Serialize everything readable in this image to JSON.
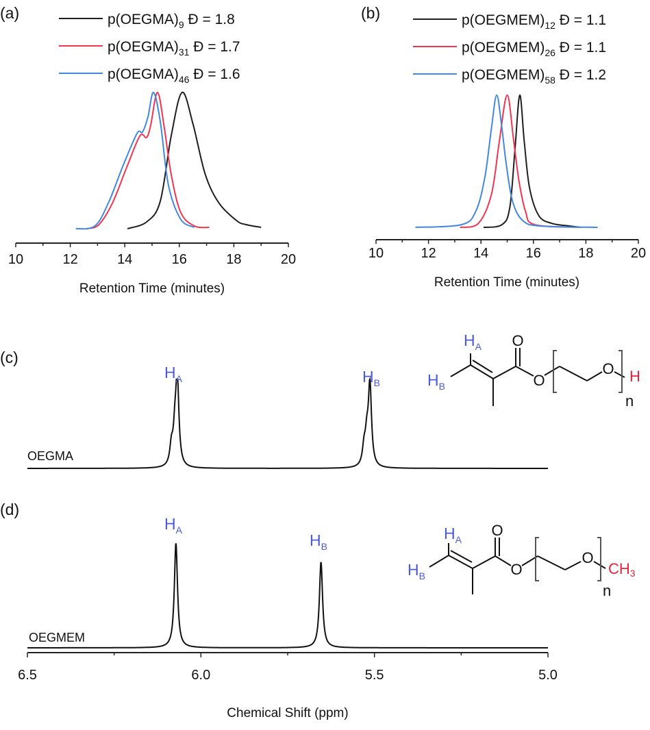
{
  "colors": {
    "black": "#1e1e1e",
    "red": "#f2344f",
    "blue": "#3f87e0",
    "label_blue": "#4a5ad8",
    "label_red": "#e8243c"
  },
  "chart_data": [
    {
      "panel": "(a)",
      "type": "line",
      "xlabel": "Retention Time (minutes)",
      "xlim": [
        10,
        20
      ],
      "xticks": [
        "10",
        "12",
        "14",
        "16",
        "18",
        "20"
      ],
      "yaxis": "none",
      "legend": "top",
      "series": [
        {
          "name_main": "p(OEGMA)",
          "name_sub": "9",
          "name_tail": " Đ = 1.8",
          "color": "black",
          "points": [
            [
              14.1,
              0
            ],
            [
              14.8,
              0.05
            ],
            [
              15.3,
              0.2
            ],
            [
              15.7,
              0.68
            ],
            [
              16.1,
              1
            ],
            [
              16.5,
              0.77
            ],
            [
              16.95,
              0.4
            ],
            [
              17.45,
              0.19
            ],
            [
              18.1,
              0.06
            ],
            [
              18.45,
              0.03
            ],
            [
              19.0,
              0.01
            ]
          ]
        },
        {
          "name_main": "p(OEGMA)",
          "name_sub": "31",
          "name_tail": " Đ = 1.7",
          "color": "red",
          "points": [
            [
              12.6,
              0
            ],
            [
              13.05,
              0.03
            ],
            [
              13.55,
              0.19
            ],
            [
              14.05,
              0.44
            ],
            [
              14.55,
              0.68
            ],
            [
              14.8,
              0.67
            ],
            [
              14.95,
              0.76
            ],
            [
              15.2,
              1
            ],
            [
              15.45,
              0.74
            ],
            [
              15.7,
              0.4
            ],
            [
              16.05,
              0.12
            ],
            [
              16.55,
              0.02
            ],
            [
              17.1,
              0.01
            ]
          ]
        },
        {
          "name_main": "p(OEGMA)",
          "name_sub": "46",
          "name_tail": " Đ = 1.6",
          "color": "blue",
          "points": [
            [
              12.2,
              0
            ],
            [
              12.9,
              0.02
            ],
            [
              13.4,
              0.19
            ],
            [
              13.95,
              0.47
            ],
            [
              14.45,
              0.7
            ],
            [
              14.65,
              0.71
            ],
            [
              14.85,
              0.82
            ],
            [
              15.05,
              1
            ],
            [
              15.3,
              0.79
            ],
            [
              15.6,
              0.32
            ],
            [
              16.05,
              0.07
            ],
            [
              16.55,
              0.01
            ]
          ]
        }
      ]
    },
    {
      "panel": "(b)",
      "type": "line",
      "xlabel": "Retention Time (minutes)",
      "xlim": [
        10,
        20
      ],
      "xticks": [
        "10",
        "12",
        "14",
        "16",
        "18",
        "20"
      ],
      "yaxis": "none",
      "legend": "top",
      "series": [
        {
          "name_main": "p(OEGMEM)",
          "name_sub": "12",
          "name_tail": " Đ = 1.1",
          "color": "black",
          "points": [
            [
              14.1,
              0
            ],
            [
              14.8,
              0.02
            ],
            [
              15.1,
              0.15
            ],
            [
              15.3,
              0.6
            ],
            [
              15.48,
              1
            ],
            [
              15.65,
              0.65
            ],
            [
              15.85,
              0.3
            ],
            [
              16.2,
              0.09
            ],
            [
              16.7,
              0.03
            ],
            [
              17.4,
              0.01
            ],
            [
              17.8,
              0
            ]
          ]
        },
        {
          "name_main": "p(OEGMEM)",
          "name_sub": "26",
          "name_tail": " Đ = 1.1",
          "color": "red",
          "points": [
            [
              13.2,
              0
            ],
            [
              13.9,
              0.03
            ],
            [
              14.4,
              0.25
            ],
            [
              14.7,
              0.65
            ],
            [
              15.0,
              1
            ],
            [
              15.25,
              0.65
            ],
            [
              15.45,
              0.35
            ],
            [
              15.7,
              0.12
            ],
            [
              16.05,
              0.02
            ],
            [
              17.8,
              0
            ]
          ]
        },
        {
          "name_main": "p(OEGMEM)",
          "name_sub": "58",
          "name_tail": " Đ = 1.2",
          "color": "blue",
          "points": [
            [
              11.5,
              0
            ],
            [
              13.25,
              0.02
            ],
            [
              13.8,
              0.12
            ],
            [
              14.15,
              0.38
            ],
            [
              14.4,
              0.75
            ],
            [
              14.6,
              1
            ],
            [
              14.8,
              0.75
            ],
            [
              14.95,
              0.5
            ],
            [
              15.2,
              0.2
            ],
            [
              15.6,
              0.05
            ],
            [
              16.3,
              0.01
            ],
            [
              18.45,
              0
            ]
          ]
        }
      ]
    },
    {
      "panel": "(c)",
      "type": "line",
      "sample": "OEGMA",
      "xlim": [
        6.5,
        5.0
      ],
      "xaxis": "hidden",
      "peaks": [
        {
          "ppm": 6.068,
          "rel": 1.0
        },
        {
          "ppm": 6.085,
          "rel": 0.22
        },
        {
          "ppm": 6.075,
          "rel": 0.35
        },
        {
          "ppm": 5.513,
          "rel": 0.96
        },
        {
          "ppm": 5.53,
          "rel": 0.2
        },
        {
          "ppm": 5.522,
          "rel": 0.3
        }
      ],
      "labels": [
        {
          "main": "H",
          "sub": "A"
        },
        {
          "main": "H",
          "sub": "B"
        }
      ],
      "structure": {
        "ha": "H",
        "ha_sub": "A",
        "hb": "H",
        "hb_sub": "B",
        "o1": "O",
        "o2": "O",
        "o3": "O",
        "n": "n",
        "end": "H"
      }
    },
    {
      "panel": "(d)",
      "type": "line",
      "sample": "OEGMEM",
      "xlabel": "Chemical Shift (ppm)",
      "xlim": [
        6.5,
        5.0
      ],
      "xticks": [
        "6.5",
        "6.0",
        "5.5",
        "5.0"
      ],
      "peaks": [
        {
          "ppm": 6.072,
          "rel": 1.0
        },
        {
          "ppm": 5.654,
          "rel": 0.82
        }
      ],
      "labels": [
        {
          "main": "H",
          "sub": "A"
        },
        {
          "main": "H",
          "sub": "B"
        }
      ],
      "structure": {
        "ha": "H",
        "ha_sub": "A",
        "hb": "H",
        "hb_sub": "B",
        "o1": "O",
        "o2": "O",
        "o3": "O",
        "n": "n",
        "end": "CH",
        "end_sub": "3"
      }
    }
  ]
}
